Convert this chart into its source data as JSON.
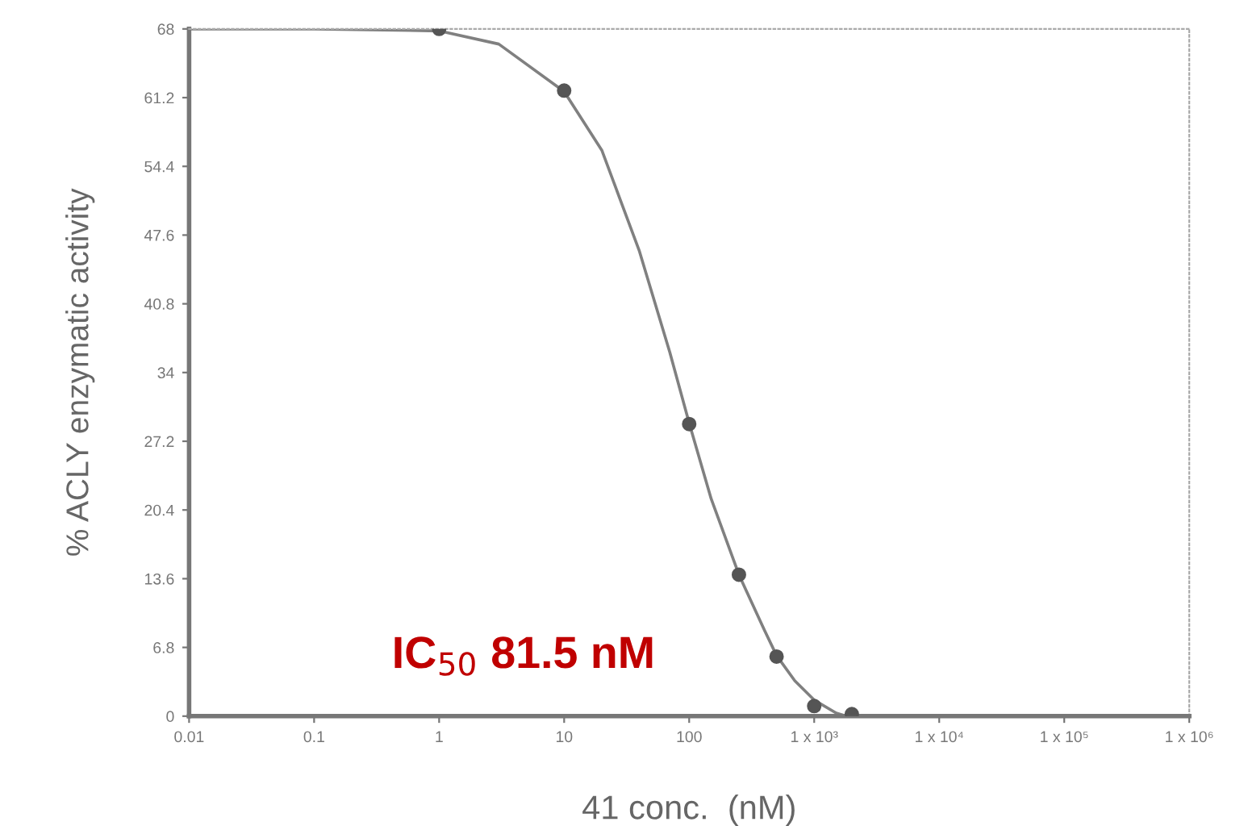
{
  "chart_data": {
    "type": "scatter",
    "xlabel": "41 conc.  (nM)",
    "ylabel": "% ACLY enzymatic activity",
    "log": "x",
    "grid": false,
    "xlim": [
      0.01,
      1000000
    ],
    "ylim": [
      0,
      68
    ],
    "xticks": [
      0.01,
      0.1,
      1,
      10,
      100,
      {
        "value": 1000,
        "label": "1 x 10³"
      },
      {
        "value": 10000,
        "label": "1 x 10⁴"
      },
      {
        "value": 100000,
        "label": "1 x 10⁵"
      },
      {
        "value": 1000000,
        "label": "1 x 10⁶"
      }
    ],
    "yticks": [
      0,
      6.8,
      13.6,
      20.4,
      27.2,
      34,
      40.8,
      47.6,
      54.4,
      61.2,
      68
    ],
    "series": [
      {
        "type": "line",
        "color": "#808080",
        "marker": "none",
        "x": [
          0.01,
          0.1,
          1,
          3,
          10,
          20,
          40,
          70,
          100,
          150,
          250,
          400,
          500,
          700,
          1000,
          1500,
          1800
        ],
        "values": [
          68,
          68,
          67.8,
          66.5,
          61.8,
          56,
          46,
          36,
          29,
          21.5,
          14,
          8.5,
          6,
          3.5,
          1.6,
          0.3,
          0
        ]
      },
      {
        "color": "#555555",
        "marker": "circle",
        "x": [
          1,
          10,
          100,
          250,
          500,
          1000,
          2000
        ],
        "values": [
          68,
          61.9,
          28.9,
          14,
          5.9,
          1,
          0.2
        ]
      }
    ],
    "annotations": [
      "IC$_{50}$ 81.5 nM"
    ]
  }
}
